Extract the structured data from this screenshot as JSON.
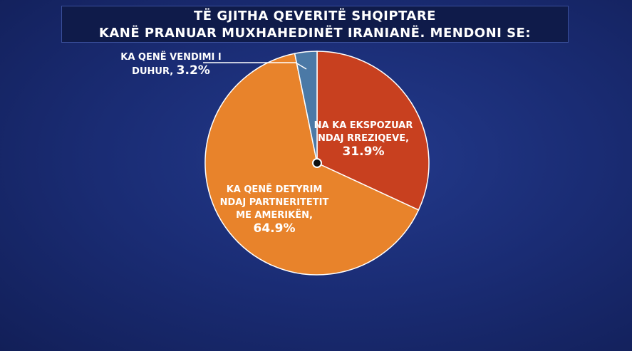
{
  "chart_data": {
    "type": "pie",
    "title": [
      "TË GJITHA QEVERITË SHQIPTARE",
      "KANË PRANUAR MUXHAHEDINËT IRANIANË. MENDONI SE:"
    ],
    "categories": [
      "NA KA EKSPOZUAR NDAJ RREZIQEVE,",
      "KA QENË DETYRIM NDAJ PARTNERITETIT ME AMERIKËN,",
      "KA QENË VENDIMI I DUHUR,"
    ],
    "values": [
      31.9,
      64.9,
      3.2
    ],
    "value_labels": [
      "31.9%",
      "64.9%",
      "3.2%"
    ],
    "colors": [
      "#c8401f",
      "#e8832b",
      "#4b79a6"
    ]
  }
}
